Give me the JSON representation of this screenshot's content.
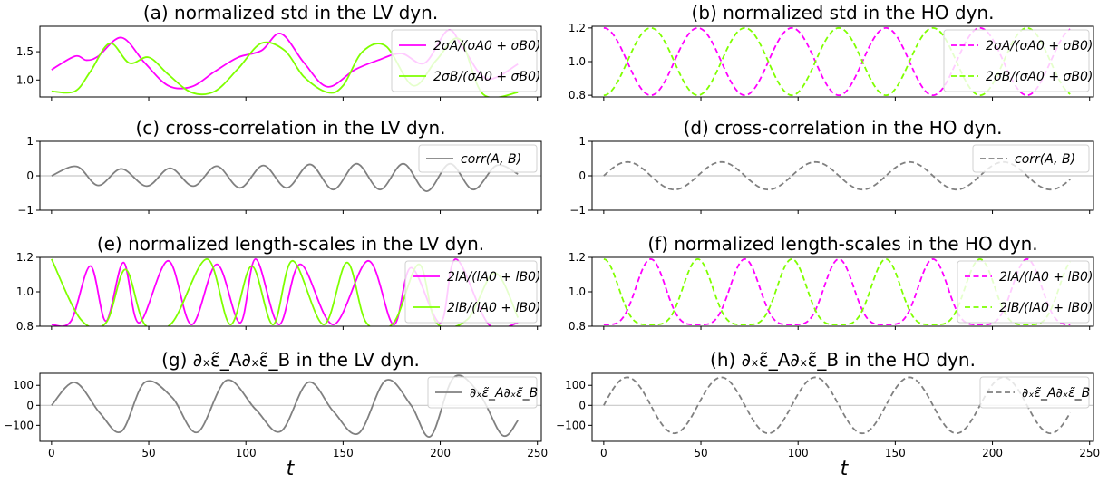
{
  "colors": {
    "magenta": "#ff00ff",
    "green": "#7fff00",
    "gray": "#808080",
    "zero_line": "#c8c8c8"
  },
  "figure": {
    "xlabel": "t"
  },
  "chart_data": [
    {
      "id": "a",
      "type": "line",
      "title": "(a) normalized std in the LV dyn.",
      "xlim": [
        -6,
        252
      ],
      "ylim": [
        0.7,
        1.95
      ],
      "yticks": [
        1.0,
        1.5
      ],
      "ytick_labels": [
        "1.0",
        "1.5"
      ],
      "xticks": [
        0,
        50,
        100,
        150,
        200,
        250
      ],
      "show_xtick_labels": false,
      "zero_line": false,
      "series": [
        {
          "name": "2σA/(σA0 + σB0)",
          "color": "magenta",
          "dash": false,
          "x": [
            0,
            12,
            18,
            24,
            36,
            48,
            60,
            72,
            84,
            96,
            108,
            118,
            130,
            142,
            156,
            168,
            180,
            192,
            204,
            212,
            224,
            240
          ],
          "y": [
            1.18,
            1.42,
            1.35,
            1.42,
            1.75,
            1.3,
            0.9,
            0.88,
            1.15,
            1.4,
            1.52,
            1.82,
            1.3,
            0.88,
            1.18,
            1.35,
            1.47,
            1.3,
            1.88,
            1.55,
            1.02,
            1.28
          ]
        },
        {
          "name": "2σB/(σA0 + σB0)",
          "color": "green",
          "dash": false,
          "x": [
            0,
            12,
            20,
            30,
            40,
            50,
            60,
            72,
            84,
            96,
            108,
            120,
            130,
            142,
            150,
            160,
            172,
            186,
            198,
            210,
            222,
            240
          ],
          "y": [
            0.8,
            0.8,
            1.15,
            1.65,
            1.3,
            1.4,
            1.1,
            0.78,
            0.8,
            1.2,
            1.65,
            1.52,
            1.05,
            0.78,
            0.9,
            1.5,
            1.6,
            0.9,
            1.35,
            1.72,
            0.75,
            0.78
          ]
        }
      ],
      "legend": {
        "position": "upper right"
      }
    },
    {
      "id": "b",
      "type": "line",
      "title": "(b) normalized std in the HO dyn.",
      "xlim": [
        -6,
        252
      ],
      "ylim": [
        0.79,
        1.21
      ],
      "yticks": [
        0.8,
        1.0,
        1.2
      ],
      "ytick_labels": [
        "0.8",
        "1.0",
        "1.2"
      ],
      "xticks": [
        0,
        50,
        100,
        150,
        200,
        250
      ],
      "show_xtick_labels": false,
      "zero_line": false,
      "wave": {
        "x_start": 0,
        "x_end": 240,
        "period": 48.4
      },
      "series": [
        {
          "name": "2σA/(σA0 + σB0)",
          "color": "magenta",
          "dash": true,
          "center": 1.0,
          "amplitude": 0.2,
          "phase": 0,
          "func": "cos"
        },
        {
          "name": "2σB/(σA0 + σB0)",
          "color": "green",
          "dash": true,
          "center": 1.0,
          "amplitude": -0.2,
          "phase": 0,
          "func": "cos"
        }
      ],
      "legend": {
        "position": "upper right"
      }
    },
    {
      "id": "c",
      "type": "line",
      "title": "(c) cross-correlation in the LV dyn.",
      "xlim": [
        -6,
        252
      ],
      "ylim": [
        -1,
        1
      ],
      "yticks": [
        -1,
        0,
        1
      ],
      "ytick_labels": [
        "−1",
        "0",
        "1"
      ],
      "xticks": [
        0,
        50,
        100,
        150,
        200,
        250
      ],
      "show_xtick_labels": false,
      "zero_line": true,
      "series": [
        {
          "name": "corr(A, B)",
          "color": "gray",
          "dash": false,
          "x": [
            0,
            13,
            24,
            36,
            49,
            61,
            73,
            85,
            97,
            109,
            121,
            133,
            145,
            157,
            169,
            181,
            193,
            205,
            217,
            229,
            240
          ],
          "y": [
            0,
            0.27,
            -0.28,
            0.2,
            -0.3,
            0.22,
            -0.3,
            0.28,
            -0.35,
            0.3,
            -0.35,
            0.33,
            -0.4,
            0.35,
            -0.4,
            0.35,
            -0.45,
            0.35,
            -0.4,
            0.3,
            0.05
          ]
        }
      ],
      "legend": {
        "position": "upper right"
      }
    },
    {
      "id": "d",
      "type": "line",
      "title": "(d) cross-correlation in the HO dyn.",
      "xlim": [
        -6,
        252
      ],
      "ylim": [
        -1,
        1
      ],
      "yticks": [
        -1,
        0,
        1
      ],
      "ytick_labels": [
        "−1",
        "0",
        "1"
      ],
      "xticks": [
        0,
        50,
        100,
        150,
        200,
        250
      ],
      "show_xtick_labels": false,
      "zero_line": true,
      "wave": {
        "x_start": 0,
        "x_end": 240,
        "period": 48.4
      },
      "series": [
        {
          "name": "corr(A, B)",
          "color": "gray",
          "dash": true,
          "center": 0,
          "amplitude": 0.4,
          "phase": 0,
          "func": "sin"
        }
      ],
      "legend": {
        "position": "upper right"
      }
    },
    {
      "id": "e",
      "type": "line",
      "title": "(e) normalized length-scales in the LV dyn.",
      "xlim": [
        -6,
        252
      ],
      "ylim": [
        0.8,
        1.2
      ],
      "yticks": [
        0.8,
        1.0,
        1.2
      ],
      "ytick_labels": [
        "0.8",
        "1.0",
        "1.2"
      ],
      "xticks": [
        0,
        50,
        100,
        150,
        200,
        250
      ],
      "show_xtick_labels": false,
      "zero_line": false,
      "series": [
        {
          "name": "2lA/(lA0 + lB0)",
          "color": "magenta",
          "dash": false,
          "x": [
            0,
            10,
            20,
            28,
            37,
            45,
            60,
            72,
            85,
            97,
            105,
            117,
            128,
            145,
            163,
            176,
            185,
            200,
            208,
            225,
            240
          ],
          "y": [
            0.81,
            0.83,
            1.15,
            0.83,
            1.17,
            0.82,
            1.18,
            0.81,
            1.16,
            0.82,
            1.19,
            0.81,
            1.16,
            0.81,
            1.18,
            0.81,
            1.14,
            0.82,
            1.19,
            0.81,
            0.82
          ]
        },
        {
          "name": "2lB/(lA0 + lB0)",
          "color": "green",
          "dash": false,
          "x": [
            0,
            15,
            28,
            38,
            48,
            62,
            80,
            92,
            103,
            114,
            124,
            140,
            152,
            162,
            176,
            189,
            198,
            214,
            228,
            240
          ],
          "y": [
            1.19,
            0.84,
            0.82,
            1.13,
            0.81,
            0.82,
            1.19,
            0.81,
            1.15,
            0.81,
            1.18,
            0.81,
            1.17,
            0.82,
            0.82,
            1.16,
            0.82,
            0.84,
            1.11,
            0.85
          ]
        }
      ],
      "legend": {
        "position": "upper right"
      }
    },
    {
      "id": "f",
      "type": "line",
      "title": "(f) normalized length-scales in the HO dyn.",
      "xlim": [
        -6,
        252
      ],
      "ylim": [
        0.8,
        1.2
      ],
      "yticks": [
        0.8,
        1.0,
        1.2
      ],
      "ytick_labels": [
        "0.8",
        "1.0",
        "1.2"
      ],
      "xticks": [
        0,
        50,
        100,
        150,
        200,
        250
      ],
      "show_xtick_labels": false,
      "zero_line": false,
      "wave": {
        "x_start": 0,
        "x_end": 240,
        "period": 48.4
      },
      "series": [
        {
          "name": "2lA/(lA0 + lB0)",
          "color": "magenta",
          "dash": true,
          "center": 1.0,
          "amplitude": 0.19,
          "phase": 0,
          "func": "peaky_a"
        },
        {
          "name": "2lB/(lA0 + lB0)",
          "color": "green",
          "dash": true,
          "center": 1.0,
          "amplitude": 0.19,
          "phase": 0,
          "func": "peaky_b"
        }
      ],
      "legend": {
        "position": "upper right"
      }
    },
    {
      "id": "g",
      "type": "line",
      "title": "(g) ∂ₓε̃_A∂ₓε̃_B in the LV dyn.",
      "xlim": [
        -6,
        252
      ],
      "ylim": [
        -180,
        160
      ],
      "yticks": [
        -100,
        0,
        100
      ],
      "ytick_labels": [
        "−100",
        "0",
        "100"
      ],
      "xticks": [
        0,
        50,
        100,
        150,
        200,
        250
      ],
      "show_xtick_labels": true,
      "xtick_labels": [
        "0",
        "50",
        "100",
        "150",
        "200",
        "250"
      ],
      "zero_line": true,
      "series": [
        {
          "name": "∂ₓε̃_A∂ₓε̃_B",
          "color": "gray",
          "dash": false,
          "x": [
            0,
            12,
            25,
            36,
            48,
            62,
            75,
            90,
            105,
            118,
            132,
            145,
            158,
            172,
            185,
            195,
            207,
            220,
            232,
            240
          ],
          "y": [
            0,
            115,
            -40,
            -130,
            115,
            40,
            -135,
            125,
            -20,
            -130,
            115,
            -30,
            -140,
            125,
            0,
            -155,
            140,
            60,
            -150,
            -75
          ]
        }
      ],
      "legend": {
        "position": "upper right"
      }
    },
    {
      "id": "h",
      "type": "line",
      "title": "(h) ∂ₓε̃_A∂ₓε̃_B in the HO dyn.",
      "xlim": [
        -6,
        252
      ],
      "ylim": [
        -180,
        160
      ],
      "yticks": [
        -100,
        0,
        100
      ],
      "ytick_labels": [
        "−100",
        "0",
        "100"
      ],
      "xticks": [
        0,
        50,
        100,
        150,
        200,
        250
      ],
      "show_xtick_labels": true,
      "xtick_labels": [
        "0",
        "50",
        "100",
        "150",
        "200",
        "250"
      ],
      "zero_line": true,
      "wave": {
        "x_start": 0,
        "x_end": 240,
        "period": 48.4
      },
      "series": [
        {
          "name": "∂ₓε̃_A∂ₓε̃_B",
          "color": "gray",
          "dash": true,
          "center": 0,
          "amplitude": 140,
          "phase": 0,
          "func": "sin"
        }
      ],
      "legend": {
        "position": "upper right"
      }
    }
  ]
}
